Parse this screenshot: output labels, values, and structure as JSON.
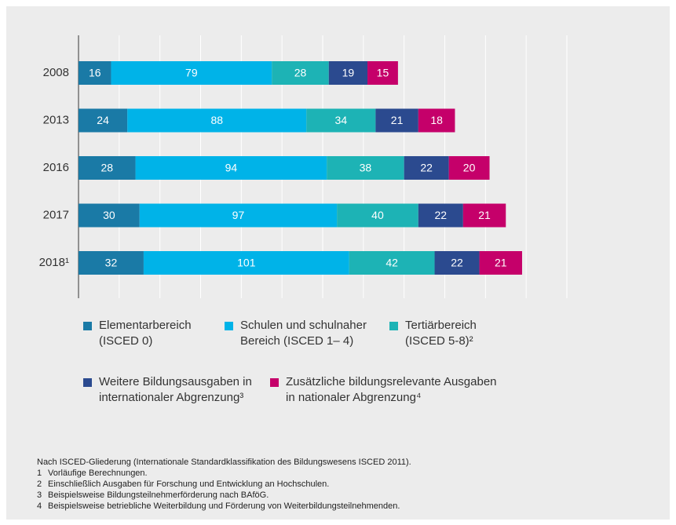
{
  "chart_data": {
    "type": "stacked-bar-horizontal",
    "categories": [
      "2008",
      "2013",
      "2016",
      "2017",
      "2018¹"
    ],
    "series": [
      {
        "name": "Elementarbereich (ISCED 0)",
        "color": "#1a7aa6",
        "values": [
          16,
          24,
          28,
          30,
          32
        ]
      },
      {
        "name": "Schulen und schulnaher Bereich (ISCED 1– 4)",
        "color": "#00b3e8",
        "values": [
          79,
          88,
          94,
          97,
          101
        ]
      },
      {
        "name": "Tertiärbereich (ISCED 5-8)²",
        "color": "#1db3b5",
        "values": [
          28,
          34,
          38,
          40,
          42
        ]
      },
      {
        "name": "Weitere Bildungsausgaben in internationaler Abgrenzung³",
        "color": "#2b4a8f",
        "values": [
          19,
          21,
          22,
          22,
          22
        ]
      },
      {
        "name": "Zusätzliche bildungsrelevante Ausgaben in nationaler Abgrenzung⁴",
        "color": "#c5006a",
        "values": [
          15,
          18,
          20,
          21,
          21
        ]
      }
    ],
    "xlim": [
      0,
      240
    ],
    "xticks": [
      0,
      20,
      40,
      60,
      80,
      100,
      120,
      140,
      160,
      180,
      200,
      220,
      240
    ],
    "grid": true,
    "notes": {
      "intro": "Nach ISCED-Gliederung (Internationale Standardklassifikation des Bildungswesens ISCED 2011).",
      "items": [
        {
          "number": "1",
          "text": "Vorläufige Berechnungen."
        },
        {
          "number": "2",
          "text": "Einschließlich Ausgaben für Forschung und Entwicklung an Hochschulen."
        },
        {
          "number": "3",
          "text": "Beispielsweise Bildungsteilnehmerförderung nach BAföG."
        },
        {
          "number": "4",
          "text": "Beispielsweise betriebliche Weiterbildung und Förderung von Weiterbildungsteilnehmenden."
        }
      ]
    }
  }
}
